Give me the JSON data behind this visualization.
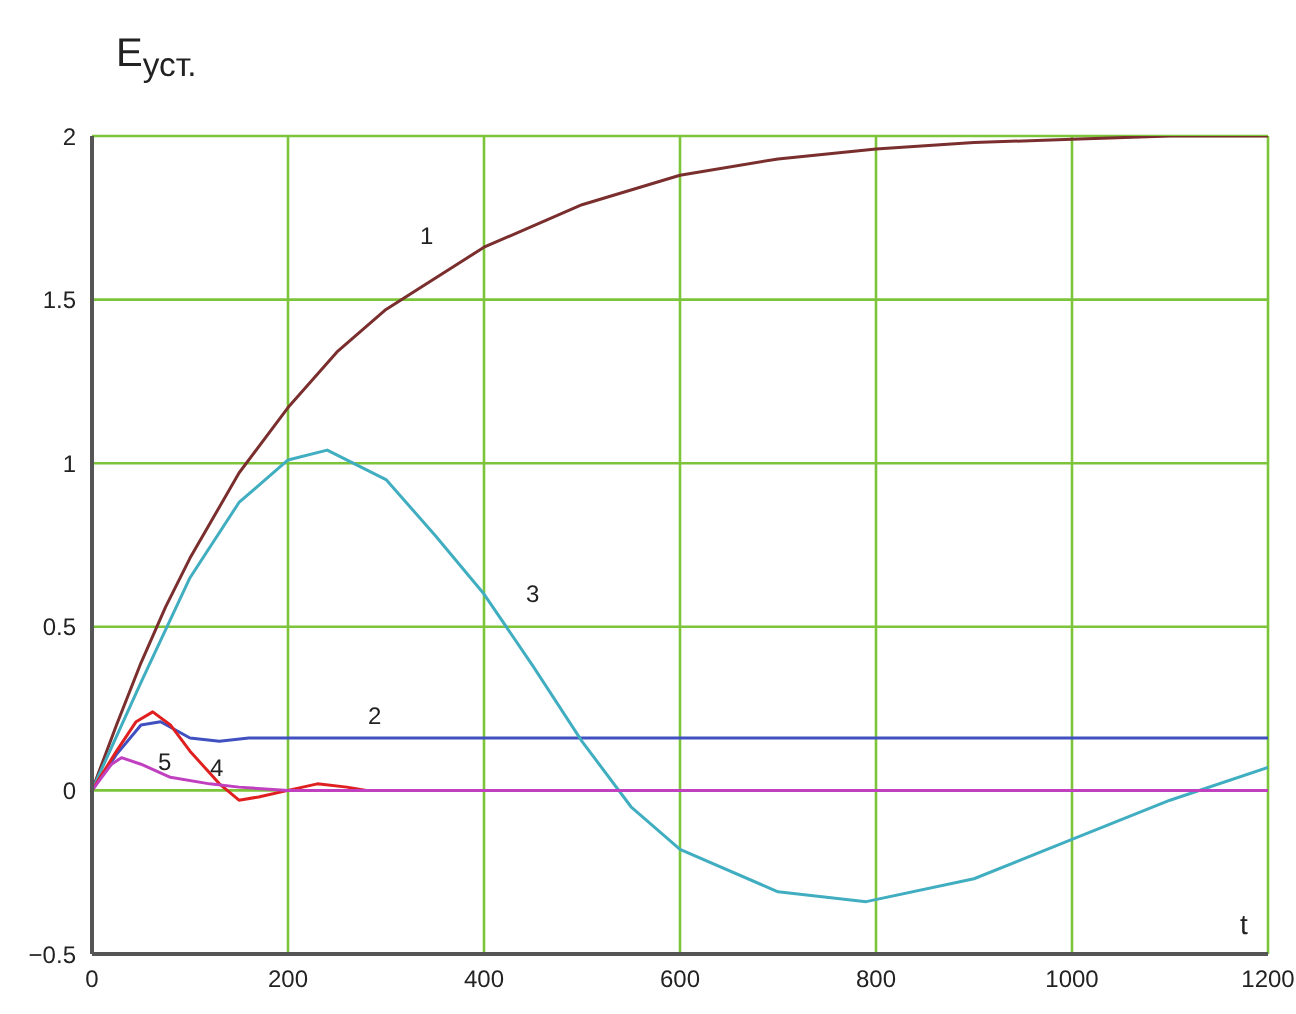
{
  "chart_data": {
    "type": "line",
    "ylabel": "E$_{уст.}$",
    "xlabel": "t",
    "xlim": [
      0,
      1200
    ],
    "ylim": [
      -0.5,
      2
    ],
    "xticks": [
      0,
      200,
      400,
      600,
      800,
      1000,
      1200
    ],
    "yticks": [
      -0.5,
      0,
      0.5,
      1,
      1.5,
      2
    ],
    "grid": true,
    "marker": "none",
    "line_style": "solid",
    "series": [
      {
        "name": "1",
        "color": "#7a2e2e",
        "x": [
          0,
          25,
          50,
          75,
          100,
          150,
          200,
          250,
          300,
          400,
          500,
          600,
          700,
          800,
          900,
          1000,
          1100,
          1200
        ],
        "values": [
          0,
          0.2,
          0.39,
          0.56,
          0.71,
          0.97,
          1.17,
          1.34,
          1.47,
          1.66,
          1.79,
          1.88,
          1.93,
          1.96,
          1.98,
          1.99,
          2,
          2
        ]
      },
      {
        "name": "2",
        "color": "#4050c0",
        "x": [
          0,
          25,
          50,
          70,
          100,
          130,
          160,
          300,
          1200
        ],
        "values": [
          0,
          0.11,
          0.2,
          0.21,
          0.16,
          0.15,
          0.16,
          0.16,
          0.16
        ]
      },
      {
        "name": "3",
        "color": "#40aec0",
        "x": [
          0,
          50,
          100,
          150,
          200,
          240,
          300,
          350,
          400,
          450,
          500,
          550,
          600,
          700,
          790,
          900,
          1000,
          1100,
          1200
        ],
        "values": [
          0,
          0.33,
          0.65,
          0.88,
          1.01,
          1.04,
          0.95,
          0.78,
          0.6,
          0.38,
          0.15,
          -0.05,
          -0.18,
          -0.31,
          -0.34,
          -0.27,
          -0.15,
          -0.03,
          0.07
        ]
      },
      {
        "name": "4",
        "color": "#e02020",
        "x": [
          0,
          25,
          45,
          62,
          80,
          100,
          130,
          150,
          170,
          200,
          230,
          260,
          280
        ],
        "values": [
          0,
          0.12,
          0.21,
          0.24,
          0.2,
          0.12,
          0.02,
          -0.03,
          -0.02,
          0,
          0.02,
          0.01,
          0
        ]
      },
      {
        "name": "5",
        "color": "#c040c0",
        "x": [
          0,
          20,
          30,
          50,
          80,
          120,
          150,
          200,
          1200
        ],
        "values": [
          0,
          0.08,
          0.1,
          0.08,
          0.04,
          0.02,
          0.01,
          0,
          0
        ]
      }
    ]
  }
}
